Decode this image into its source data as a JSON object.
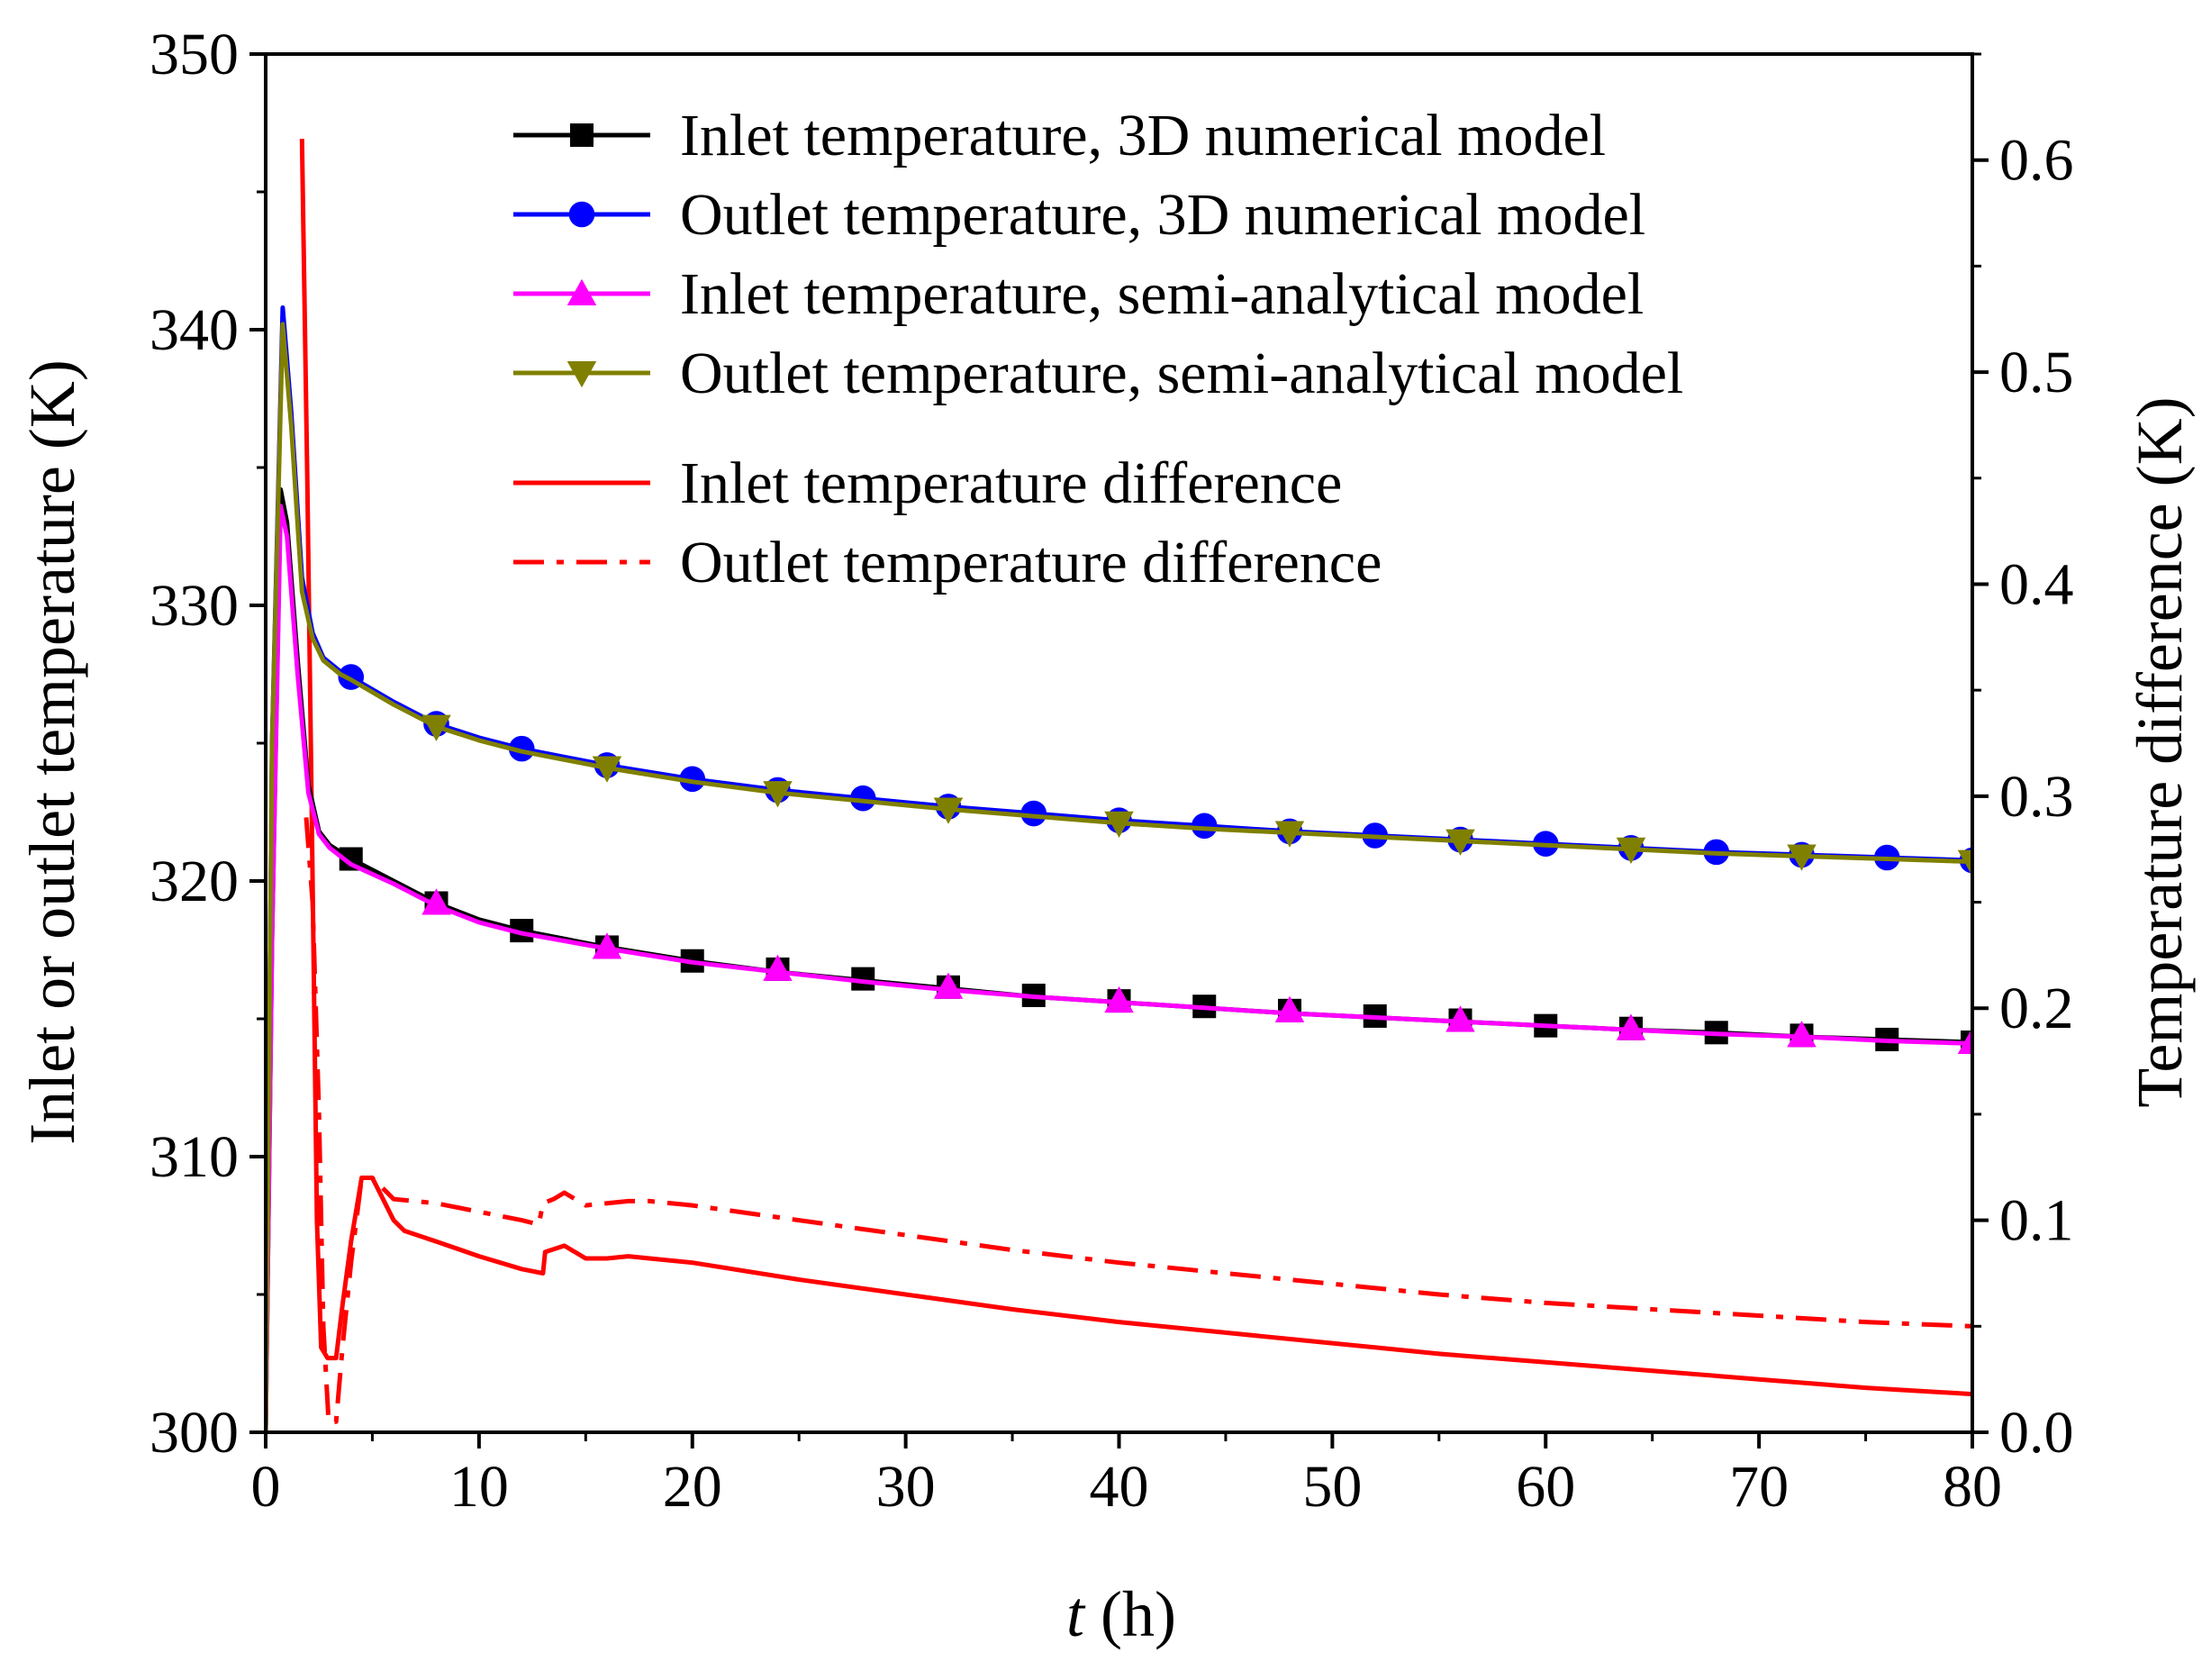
{
  "chart_data": {
    "type": "line",
    "xlabel_italic": "t",
    "xlabel_rest": " (h)",
    "ylabel": "Inlet or outlet temperature (K)",
    "y2label": "Temperature difference (K)",
    "xlim": [
      0,
      80
    ],
    "ylim": [
      300,
      350
    ],
    "y2lim": [
      0,
      0.65
    ],
    "xticks": [
      0,
      10,
      20,
      30,
      40,
      50,
      60,
      70,
      80
    ],
    "xtick_labels": [
      "0",
      "10",
      "20",
      "30",
      "40",
      "50",
      "60",
      "70",
      "80"
    ],
    "yticks": [
      300,
      310,
      320,
      330,
      340,
      350
    ],
    "ytick_labels": [
      "300",
      "310",
      "320",
      "330",
      "340",
      "350"
    ],
    "y2ticks": [
      0,
      0.1,
      0.2,
      0.3,
      0.4,
      0.5,
      0.6
    ],
    "y2tick_labels": [
      "0.0",
      "0.1",
      "0.2",
      "0.3",
      "0.4",
      "0.5",
      "0.6"
    ],
    "legend_position": "top-right",
    "series": [
      {
        "name": "Inlet temperature, 3D numerical model",
        "color": "#000000",
        "axis": "left",
        "marker": "square",
        "dash": "solid",
        "line": [
          [
            0,
            300
          ],
          [
            0.3,
            318
          ],
          [
            0.7,
            334.2
          ],
          [
            1.0,
            333
          ],
          [
            1.5,
            328
          ],
          [
            2.0,
            323.5
          ],
          [
            2.5,
            321.8
          ],
          [
            3,
            321.3
          ],
          [
            4,
            320.8
          ],
          [
            6,
            320
          ],
          [
            8,
            319.2
          ],
          [
            10,
            318.6
          ],
          [
            12,
            318.2
          ],
          [
            16,
            317.6
          ],
          [
            20,
            317.1
          ],
          [
            24,
            316.7
          ],
          [
            28,
            316.4
          ],
          [
            32,
            316.1
          ],
          [
            36,
            315.8
          ],
          [
            40,
            315.6
          ],
          [
            44,
            315.4
          ],
          [
            48,
            315.2
          ],
          [
            52,
            315.05
          ],
          [
            56,
            314.9
          ],
          [
            60,
            314.75
          ],
          [
            64,
            314.6
          ],
          [
            68,
            314.5
          ],
          [
            72,
            314.35
          ],
          [
            76,
            314.25
          ],
          [
            80,
            314.15
          ]
        ],
        "markers": [
          [
            4,
            320.8
          ],
          [
            8,
            319.2
          ],
          [
            12,
            318.2
          ],
          [
            16,
            317.6
          ],
          [
            20,
            317.1
          ],
          [
            24,
            316.8
          ],
          [
            28,
            316.45
          ],
          [
            32,
            316.15
          ],
          [
            36,
            315.85
          ],
          [
            40,
            315.65
          ],
          [
            44,
            315.45
          ],
          [
            48,
            315.3
          ],
          [
            52,
            315.1
          ],
          [
            56,
            314.95
          ],
          [
            60,
            314.75
          ],
          [
            64,
            314.65
          ],
          [
            68,
            314.5
          ],
          [
            72,
            314.4
          ],
          [
            76,
            314.25
          ],
          [
            80,
            314.15
          ]
        ]
      },
      {
        "name": "Outlet temperature, 3D numerical model",
        "color": "#0000ff",
        "axis": "left",
        "marker": "circle",
        "dash": "solid",
        "line": [
          [
            0,
            300
          ],
          [
            0.3,
            325
          ],
          [
            0.8,
            340.8
          ],
          [
            1.2,
            337
          ],
          [
            1.7,
            331
          ],
          [
            2.2,
            329
          ],
          [
            2.7,
            328.1
          ],
          [
            3.5,
            327.6
          ],
          [
            4,
            327.4
          ],
          [
            6,
            326.5
          ],
          [
            8,
            325.7
          ],
          [
            10,
            325.2
          ],
          [
            12,
            324.8
          ],
          [
            16,
            324.2
          ],
          [
            20,
            323.7
          ],
          [
            24,
            323.3
          ],
          [
            28,
            323
          ],
          [
            32,
            322.7
          ],
          [
            36,
            322.45
          ],
          [
            40,
            322.2
          ],
          [
            44,
            322
          ],
          [
            48,
            321.8
          ],
          [
            52,
            321.65
          ],
          [
            56,
            321.5
          ],
          [
            60,
            321.35
          ],
          [
            64,
            321.2
          ],
          [
            68,
            321.05
          ],
          [
            72,
            320.95
          ],
          [
            76,
            320.85
          ],
          [
            80,
            320.75
          ]
        ],
        "markers": [
          [
            4,
            327.4
          ],
          [
            8,
            325.7
          ],
          [
            12,
            324.8
          ],
          [
            16,
            324.2
          ],
          [
            20,
            323.7
          ],
          [
            24,
            323.3
          ],
          [
            28,
            323
          ],
          [
            32,
            322.7
          ],
          [
            36,
            322.45
          ],
          [
            40,
            322.2
          ],
          [
            44,
            322
          ],
          [
            48,
            321.8
          ],
          [
            52,
            321.65
          ],
          [
            56,
            321.5
          ],
          [
            60,
            321.35
          ],
          [
            64,
            321.2
          ],
          [
            68,
            321.05
          ],
          [
            72,
            320.95
          ],
          [
            76,
            320.85
          ],
          [
            80,
            320.75
          ]
        ]
      },
      {
        "name": "Inlet temperature, semi-analytical model",
        "color": "#ff00ff",
        "axis": "left",
        "marker": "triangle-up",
        "dash": "solid",
        "line": [
          [
            0,
            300
          ],
          [
            0.3,
            318
          ],
          [
            0.7,
            333.6
          ],
          [
            1.0,
            332.5
          ],
          [
            1.5,
            327.5
          ],
          [
            2.0,
            323.2
          ],
          [
            2.5,
            321.7
          ],
          [
            3,
            321.2
          ],
          [
            4,
            320.6
          ],
          [
            6,
            319.9
          ],
          [
            8,
            319.1
          ],
          [
            10,
            318.5
          ],
          [
            12,
            318.1
          ],
          [
            16,
            317.55
          ],
          [
            20,
            317.05
          ],
          [
            24,
            316.7
          ],
          [
            28,
            316.35
          ],
          [
            32,
            316.05
          ],
          [
            36,
            315.8
          ],
          [
            40,
            315.6
          ],
          [
            44,
            315.4
          ],
          [
            48,
            315.2
          ],
          [
            52,
            315.05
          ],
          [
            56,
            314.9
          ],
          [
            60,
            314.75
          ],
          [
            64,
            314.6
          ],
          [
            68,
            314.45
          ],
          [
            72,
            314.35
          ],
          [
            76,
            314.2
          ],
          [
            80,
            314.1
          ]
        ],
        "markers": [
          [
            8,
            319.2
          ],
          [
            16,
            317.6
          ],
          [
            24,
            316.8
          ],
          [
            32,
            316.15
          ],
          [
            40,
            315.65
          ],
          [
            48,
            315.3
          ],
          [
            56,
            314.95
          ],
          [
            64,
            314.65
          ],
          [
            72,
            314.4
          ],
          [
            80,
            314.15
          ]
        ]
      },
      {
        "name": "Outlet temperature, semi-analytical model",
        "color": "#808000",
        "axis": "left",
        "marker": "triangle-down",
        "dash": "solid",
        "line": [
          [
            0,
            300
          ],
          [
            0.3,
            325
          ],
          [
            0.8,
            340.2
          ],
          [
            1.2,
            336.5
          ],
          [
            1.7,
            330.5
          ],
          [
            2.2,
            328.8
          ],
          [
            2.7,
            328
          ],
          [
            3.5,
            327.5
          ],
          [
            4,
            327.3
          ],
          [
            6,
            326.4
          ],
          [
            8,
            325.6
          ],
          [
            10,
            325.1
          ],
          [
            12,
            324.7
          ],
          [
            16,
            324.1
          ],
          [
            20,
            323.6
          ],
          [
            24,
            323.2
          ],
          [
            28,
            322.9
          ],
          [
            32,
            322.6
          ],
          [
            36,
            322.35
          ],
          [
            40,
            322.1
          ],
          [
            44,
            321.9
          ],
          [
            48,
            321.75
          ],
          [
            52,
            321.6
          ],
          [
            56,
            321.45
          ],
          [
            60,
            321.3
          ],
          [
            64,
            321.15
          ],
          [
            68,
            321
          ],
          [
            72,
            320.9
          ],
          [
            76,
            320.8
          ],
          [
            80,
            320.7
          ]
        ],
        "markers": [
          [
            8,
            325.6
          ],
          [
            16,
            324.1
          ],
          [
            24,
            323.2
          ],
          [
            32,
            322.6
          ],
          [
            40,
            322.1
          ],
          [
            48,
            321.75
          ],
          [
            56,
            321.45
          ],
          [
            64,
            321.15
          ],
          [
            72,
            320.9
          ],
          [
            80,
            320.7
          ]
        ]
      },
      {
        "name": "Inlet temperature difference",
        "color": "#ff0000",
        "axis": "right",
        "marker": "none",
        "dash": "solid",
        "line": [
          [
            1.7,
            0.61
          ],
          [
            1.95,
            0.45
          ],
          [
            2.15,
            0.3
          ],
          [
            2.4,
            0.1
          ],
          [
            2.6,
            0.04
          ],
          [
            2.9,
            0.035
          ],
          [
            3.3,
            0.035
          ],
          [
            3.6,
            0.06
          ],
          [
            4.0,
            0.09
          ],
          [
            4.5,
            0.12
          ],
          [
            5.0,
            0.12
          ],
          [
            5.5,
            0.11
          ],
          [
            6,
            0.1
          ],
          [
            6.5,
            0.095
          ],
          [
            8,
            0.09
          ],
          [
            10,
            0.083
          ],
          [
            12,
            0.077
          ],
          [
            13,
            0.075
          ],
          [
            13.1,
            0.085
          ],
          [
            14,
            0.088
          ],
          [
            14.5,
            0.085
          ],
          [
            15,
            0.082
          ],
          [
            16,
            0.082
          ],
          [
            17,
            0.083
          ],
          [
            18,
            0.082
          ],
          [
            20,
            0.08
          ],
          [
            25,
            0.072
          ],
          [
            30,
            0.065
          ],
          [
            35,
            0.058
          ],
          [
            40,
            0.052
          ],
          [
            45,
            0.047
          ],
          [
            50,
            0.042
          ],
          [
            55,
            0.037
          ],
          [
            60,
            0.033
          ],
          [
            65,
            0.029
          ],
          [
            70,
            0.025
          ],
          [
            75,
            0.021
          ],
          [
            80,
            0.018
          ]
        ]
      },
      {
        "name": "Outlet temperature difference",
        "color": "#ff0000",
        "axis": "right",
        "marker": "none",
        "dash": "dashdot",
        "line": [
          [
            1.9,
            0.29
          ],
          [
            2.2,
            0.25
          ],
          [
            2.5,
            0.15
          ],
          [
            2.7,
            0.05
          ],
          [
            2.95,
            0.005
          ],
          [
            3.3,
            0.005
          ],
          [
            3.6,
            0.04
          ],
          [
            4.0,
            0.08
          ],
          [
            4.5,
            0.12
          ],
          [
            5.0,
            0.12
          ],
          [
            5.5,
            0.115
          ],
          [
            6,
            0.11
          ],
          [
            8,
            0.108
          ],
          [
            10,
            0.104
          ],
          [
            12,
            0.1
          ],
          [
            12.8,
            0.098
          ],
          [
            13,
            0.108
          ],
          [
            13.5,
            0.11
          ],
          [
            14,
            0.113
          ],
          [
            14.5,
            0.11
          ],
          [
            15,
            0.107
          ],
          [
            16,
            0.108
          ],
          [
            17,
            0.109
          ],
          [
            18,
            0.109
          ],
          [
            20,
            0.107
          ],
          [
            25,
            0.1
          ],
          [
            30,
            0.093
          ],
          [
            35,
            0.086
          ],
          [
            40,
            0.08
          ],
          [
            45,
            0.075
          ],
          [
            50,
            0.07
          ],
          [
            55,
            0.065
          ],
          [
            60,
            0.061
          ],
          [
            65,
            0.058
          ],
          [
            70,
            0.055
          ],
          [
            75,
            0.052
          ],
          [
            80,
            0.05
          ]
        ]
      }
    ]
  }
}
